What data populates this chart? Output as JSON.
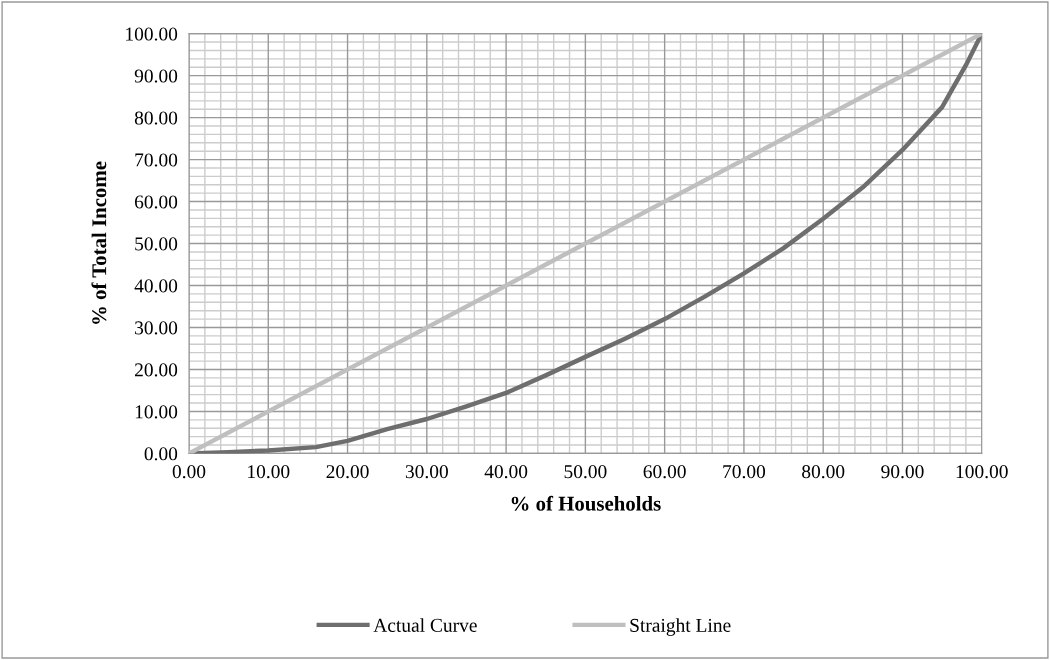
{
  "chart_data": {
    "type": "line",
    "xlabel": "% of Households",
    "ylabel": "% of Total Income",
    "series": [
      {
        "name": "Actual Curve",
        "color": "#6e6e6e",
        "x": [
          0,
          5,
          10,
          16,
          20,
          25,
          30,
          35,
          40,
          45,
          50,
          55,
          60,
          65,
          70,
          75,
          80,
          85,
          90,
          95,
          98,
          100
        ],
        "values": [
          0,
          0.3,
          0.7,
          1.5,
          3,
          5.8,
          8.2,
          11.2,
          14.4,
          18.6,
          23,
          27.3,
          32,
          37.3,
          42.9,
          48.9,
          55.9,
          63.4,
          72.3,
          82.5,
          92.5,
          100
        ]
      },
      {
        "name": "Straight Line",
        "color": "#bfbfbf",
        "x": [
          0,
          100
        ],
        "values": [
          0,
          100
        ]
      }
    ],
    "xlim": [
      0,
      100
    ],
    "ylim": [
      0,
      100
    ],
    "xticks": [
      {
        "value": 0,
        "label": "0.00"
      },
      {
        "value": 10,
        "label": "10.00"
      },
      {
        "value": 20,
        "label": "20.00"
      },
      {
        "value": 30,
        "label": "30.00"
      },
      {
        "value": 40,
        "label": "40.00"
      },
      {
        "value": 50,
        "label": "50.00"
      },
      {
        "value": 60,
        "label": "60.00"
      },
      {
        "value": 70,
        "label": "70.00"
      },
      {
        "value": 80,
        "label": "80.00"
      },
      {
        "value": 90,
        "label": "90.00"
      },
      {
        "value": 100,
        "label": "100.00"
      }
    ],
    "yticks": [
      {
        "value": 0,
        "label": "0.00"
      },
      {
        "value": 10,
        "label": "10.00"
      },
      {
        "value": 20,
        "label": "20.00"
      },
      {
        "value": 30,
        "label": "30.00"
      },
      {
        "value": 40,
        "label": "40.00"
      },
      {
        "value": 50,
        "label": "50.00"
      },
      {
        "value": 60,
        "label": "60.00"
      },
      {
        "value": 70,
        "label": "70.00"
      },
      {
        "value": 80,
        "label": "80.00"
      },
      {
        "value": 90,
        "label": "90.00"
      },
      {
        "value": 100,
        "label": "100.00"
      }
    ],
    "grid": true,
    "legend": "bottom",
    "marker": "none",
    "line_style": "solid"
  }
}
